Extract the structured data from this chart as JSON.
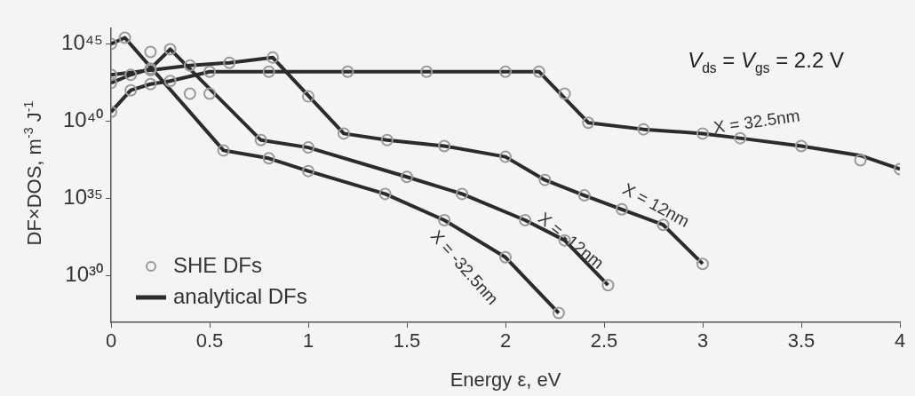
{
  "chart_data": {
    "type": "line",
    "xlabel": "Energy ε, eV",
    "ylabel": "DF×DOS, m$^{-3}$ J$^{-1}$",
    "xlim": [
      0,
      4
    ],
    "xticks": [
      0,
      0.5,
      1,
      1.5,
      2,
      2.5,
      3,
      3.5,
      4
    ],
    "ylim": [
      1e+27,
      1e+46
    ],
    "yticks": [
      {
        "value": 1e+30,
        "label": "10³⁰"
      },
      {
        "value": 1e+35,
        "label": "10³⁵"
      },
      {
        "value": 1e+40,
        "label": "10⁴⁰"
      },
      {
        "value": 1e+45,
        "label": "10⁴⁵"
      }
    ],
    "log": "y",
    "grid": false,
    "legend": "bottom left",
    "series": [
      {
        "name": "SHE DFs",
        "type": "scatter",
        "marker": "circle",
        "color": "#9a9a9a",
        "x": [
          0,
          0.1,
          0.2,
          0.3,
          0.5,
          0.8,
          1.2,
          1.6,
          2.0,
          2.17,
          2.3,
          2.42,
          2.7,
          3.0,
          3.19,
          3.5,
          3.8,
          4.0
        ],
        "values": [
          4e+40,
          1e+42,
          2.5e+42,
          4e+42,
          1.6e+43,
          1.6e+43,
          1.6e+43,
          1.6e+43,
          1.6e+43,
          1.6e+43,
          6e+41,
          8e+39,
          3e+39,
          1.6e+39,
          8e+38,
          2.5e+38,
          3e+37,
          8e+36
        ]
      },
      {
        "type": "scatter",
        "marker": "circle",
        "color": "#9a9a9a",
        "x": [
          0,
          0.2,
          0.4,
          0.6,
          0.82,
          1.0,
          1.18,
          1.4,
          1.69,
          2.0,
          2.2,
          2.4,
          2.59,
          2.8,
          3.0
        ],
        "values": [
          1e+43,
          2e+43,
          4e+43,
          6e+43,
          1.3e+44,
          4e+41,
          1.6e+39,
          6e+38,
          2.5e+38,
          5e+37,
          1.6e+36,
          1.6e+35,
          2e+34,
          2e+33,
          6e+30
        ]
      },
      {
        "type": "scatter",
        "marker": "circle",
        "color": "#9a9a9a",
        "x": [
          0,
          0.1,
          0.2,
          0.3,
          0.5,
          0.76,
          1.0,
          1.5,
          1.78,
          2.1,
          2.3,
          2.52
        ],
        "values": [
          3e+42,
          1e+43,
          2.5e+43,
          4.5e+44,
          6e+41,
          6e+38,
          2e+38,
          2.5e+36,
          2e+35,
          4e+33,
          2e+32,
          2.5e+29
        ]
      },
      {
        "type": "scatter",
        "marker": "circle",
        "color": "#9a9a9a",
        "x": [
          0,
          0.07,
          0.2,
          0.4,
          0.57,
          0.8,
          1.0,
          1.39,
          1.69,
          2.0,
          2.27
        ],
        "values": [
          1e+45,
          2.5e+45,
          3e+44,
          6e+41,
          1.3e+38,
          4e+37,
          6e+36,
          2e+35,
          4e+33,
          1.6e+31,
          4e+27
        ]
      },
      {
        "name": "analytical DFs",
        "color": "#2b2b2b",
        "x": [
          0,
          0.1,
          0.2,
          0.3,
          0.5,
          0.8,
          1.2,
          1.6,
          2.0,
          2.17,
          2.42,
          2.7,
          3.0,
          3.19,
          3.5,
          3.8,
          4.0
        ],
        "values": [
          4e+40,
          1e+42,
          2.5e+42,
          4e+42,
          1.6e+43,
          1.6e+43,
          1.6e+43,
          1.6e+43,
          1.6e+43,
          1.6e+43,
          8e+39,
          3e+39,
          1.6e+39,
          8e+38,
          2.5e+38,
          6e+37,
          8e+36
        ]
      },
      {
        "color": "#2b2b2b",
        "x": [
          0,
          0.2,
          0.4,
          0.6,
          0.82,
          1.18,
          1.4,
          1.69,
          2.0,
          2.2,
          2.4,
          2.59,
          2.8,
          3.0
        ],
        "values": [
          1e+43,
          2e+43,
          4e+43,
          6e+43,
          1.3e+44,
          1.6e+39,
          6e+38,
          2.5e+38,
          5e+37,
          1.6e+36,
          1.6e+35,
          2e+34,
          2e+33,
          6e+30
        ]
      },
      {
        "color": "#2b2b2b",
        "x": [
          0,
          0.1,
          0.2,
          0.3,
          0.76,
          1.0,
          1.5,
          1.78,
          2.1,
          2.3,
          2.52
        ],
        "values": [
          3e+42,
          1e+43,
          2.5e+43,
          4.5e+44,
          6e+38,
          2e+38,
          2.5e+36,
          2e+35,
          4e+33,
          2e+32,
          2.5e+29
        ]
      },
      {
        "color": "#2b2b2b",
        "x": [
          0,
          0.07,
          0.57,
          0.8,
          1.0,
          1.39,
          1.69,
          2.0,
          2.27
        ],
        "values": [
          1e+45,
          2.5e+45,
          1.3e+38,
          4e+37,
          6e+36,
          2e+35,
          4e+33,
          1.6e+31,
          4e+27
        ]
      }
    ],
    "annotations": [
      "V$_{ds}$ = V$_{gs}$ = 2.2 V",
      "X = 32.5nm",
      "X = 12nm",
      "X = -12nm",
      "X = -32.5nm"
    ]
  }
}
